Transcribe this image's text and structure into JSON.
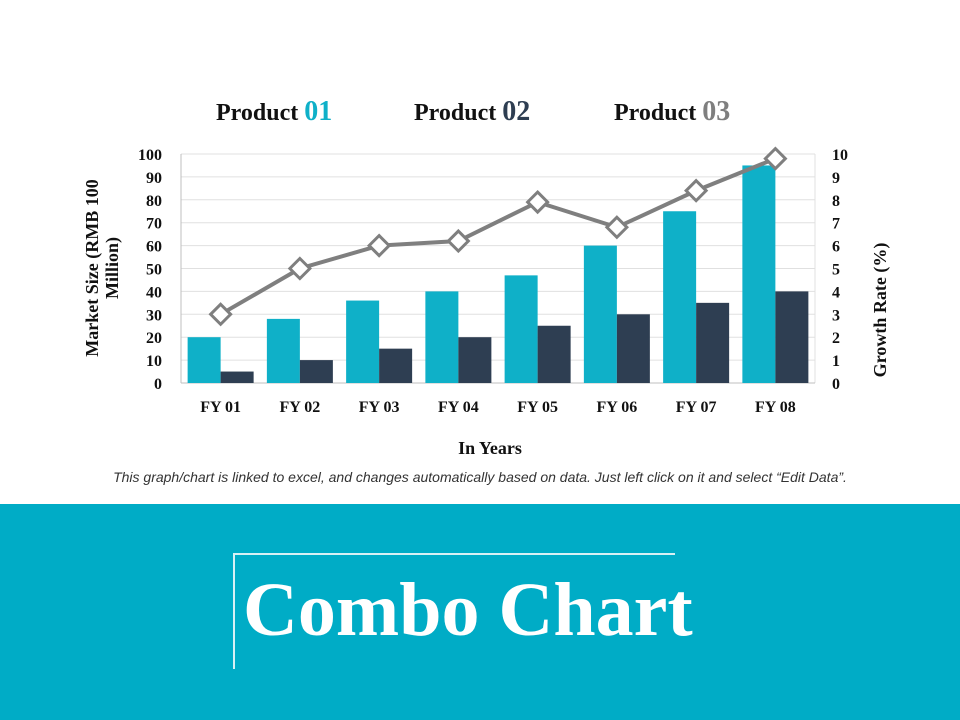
{
  "legend": [
    {
      "word": "Product",
      "num": "01",
      "color": "#0fb0c8"
    },
    {
      "word": "Product",
      "num": "02",
      "color": "#2e3e52"
    },
    {
      "word": "Product",
      "num": "03",
      "color": "#7f7f7f"
    }
  ],
  "chart_data": {
    "type": "bar+line",
    "categories": [
      "FY 01",
      "FY 02",
      "FY 03",
      "FY 04",
      "FY 05",
      "FY 06",
      "FY 07",
      "FY 08"
    ],
    "series": [
      {
        "name": "Product 01",
        "type": "bar",
        "axis": "left",
        "color": "#0fb0c8",
        "values": [
          20,
          28,
          36,
          40,
          47,
          60,
          75,
          95
        ]
      },
      {
        "name": "Product 02",
        "type": "bar",
        "axis": "left",
        "color": "#2e3e52",
        "values": [
          5,
          10,
          15,
          20,
          25,
          30,
          35,
          40
        ]
      },
      {
        "name": "Product 03",
        "type": "line",
        "axis": "right",
        "color": "#7f7f7f",
        "values": [
          3,
          5,
          6,
          6.2,
          7.9,
          6.8,
          8.4,
          9.8
        ]
      }
    ],
    "ylabel": "Market Size (RMB 100 Million)",
    "ylabel_lines": [
      "Market Size (RMB 100",
      "Million)"
    ],
    "y2label": "Growth Rate (%)",
    "xlabel": "In Years",
    "ylim": [
      0,
      100
    ],
    "yticks": [
      "0",
      "10",
      "20",
      "30",
      "40",
      "50",
      "60",
      "70",
      "80",
      "90",
      "100"
    ],
    "y2lim": [
      0,
      10
    ],
    "y2ticks": [
      "0",
      "1",
      "2",
      "3",
      "4",
      "5",
      "6",
      "7",
      "8",
      "9",
      "10"
    ],
    "grid": true,
    "legend_position": "top"
  },
  "note": "This graph/chart is linked to excel, and changes automatically based on data. Just left click on it and select “Edit Data”.",
  "title": "Combo Chart",
  "colors": {
    "banner": "#00acc6",
    "frame": "#d8f0f4"
  }
}
